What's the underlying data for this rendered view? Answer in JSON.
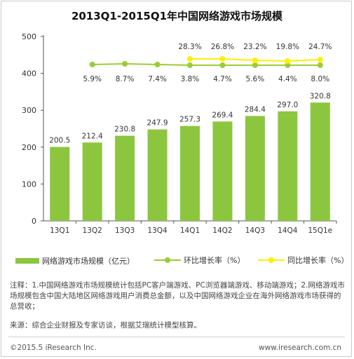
{
  "chart_data": {
    "type": "bar",
    "title": "2013Q1-2015Q1年中国网络游戏市场规模",
    "categories": [
      "13Q1",
      "13Q2",
      "13Q3",
      "13Q4",
      "14Q1",
      "14Q2",
      "14Q3",
      "14Q4",
      "15Q1e"
    ],
    "y_ticks": [
      "0",
      "100",
      "200",
      "300",
      "400",
      "500"
    ],
    "ylim": [
      0,
      500
    ],
    "bar_series": {
      "name": "网络游戏市场规模（亿元）",
      "values": [
        200.5,
        212.4,
        230.8,
        247.9,
        257.3,
        269.4,
        284.4,
        297.0,
        320.8
      ],
      "labels": [
        "200.5",
        "212.4",
        "230.8",
        "247.9",
        "257.3",
        "269.4",
        "284.4",
        "297.0",
        "320.8"
      ],
      "color": "#8cc63f"
    },
    "line_series": [
      {
        "name": "环比增长率（%）",
        "values": [
          5.9,
          8.7,
          7.4,
          3.8,
          4.7,
          5.6,
          4.4,
          8.0
        ],
        "labels": [
          "5.9%",
          "8.7%",
          "7.4%",
          "3.8%",
          "4.7%",
          "5.6%",
          "4.4%",
          "8.0%"
        ],
        "color": "#9acd32"
      },
      {
        "name": "同比增长率（%）",
        "values": [
          28.3,
          26.8,
          23.2,
          19.8,
          24.7
        ],
        "labels": [
          "28.3%",
          "26.8%",
          "23.2%",
          "19.8%",
          "24.7%"
        ],
        "color": "#ffef00"
      }
    ],
    "grid": false
  },
  "notes": {
    "note": "注释：1.中国网络游戏市场规模统计包括PC客户端游戏、PC浏览器端游戏、移动端游戏；2.网络游戏市场规模包含中国大陆地区网络游戏用户消费总金额，以及中国网络游戏企业在海外网络游戏市场获得的总营收；",
    "source": "来源：综合企业财报及专家访谈，根据艾瑞统计模型核算。"
  },
  "footer": {
    "copyright": "©2015.5 iResearch Inc.",
    "website": "www.iresearch.com.cn"
  }
}
